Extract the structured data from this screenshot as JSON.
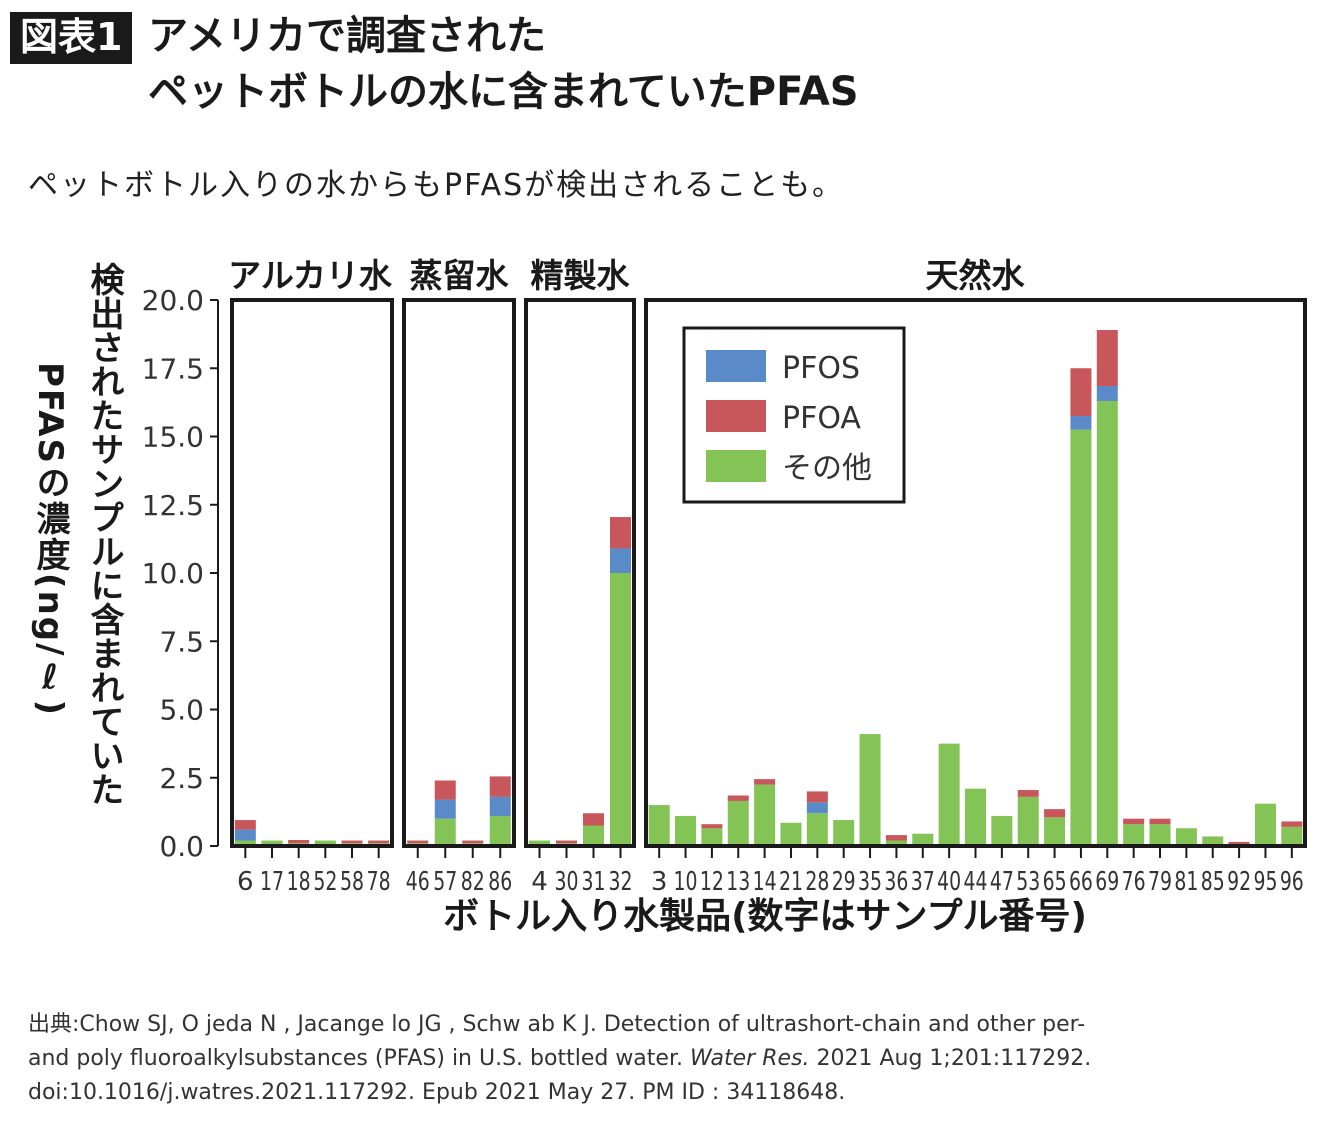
{
  "header": {
    "badge": "図表1",
    "title_line1": "アメリカで調査された",
    "title_line2": "ペットボトルの水に含まれていたPFAS",
    "subtitle": "ペットボトル入りの水からもPFASが検出されることも。"
  },
  "colors": {
    "PFOS": "#5b8ac8",
    "PFOA": "#c8575b",
    "other": "#84c457",
    "frame": "#1a1a1a"
  },
  "chart_data": {
    "type": "bar",
    "stacked": true,
    "ylabel_lines": [
      "検出されたサンプルに含まれていた",
      "PFASの濃度(ng/ℓ)"
    ],
    "xlabel": "ボトル入り水製品(数字はサンプル番号)",
    "ylim": [
      0,
      20
    ],
    "yticks": [
      "0.0",
      "2.5",
      "5.0",
      "7.5",
      "10.0",
      "12.5",
      "15.0",
      "17.5",
      "20.0"
    ],
    "legend": {
      "position": "upper-left of 天然水 panel",
      "entries": [
        "PFOS",
        "PFOA",
        "その他"
      ]
    },
    "panels": [
      {
        "name": "アルカリ水",
        "samples": [
          {
            "id": "6",
            "other": 0.2,
            "pfos": 0.4,
            "pfoa": 0.35
          },
          {
            "id": "17",
            "other": 0.2,
            "pfos": 0,
            "pfoa": 0
          },
          {
            "id": "18",
            "other": 0.1,
            "pfos": 0,
            "pfoa": 0.12
          },
          {
            "id": "52",
            "other": 0.2,
            "pfos": 0,
            "pfoa": 0
          },
          {
            "id": "58",
            "other": 0.1,
            "pfos": 0,
            "pfoa": 0.1
          },
          {
            "id": "78",
            "other": 0.1,
            "pfos": 0,
            "pfoa": 0.1
          }
        ]
      },
      {
        "name": "蒸留水",
        "samples": [
          {
            "id": "46",
            "other": 0.1,
            "pfos": 0,
            "pfoa": 0.1
          },
          {
            "id": "57",
            "other": 1.0,
            "pfos": 0.7,
            "pfoa": 0.7
          },
          {
            "id": "82",
            "other": 0.1,
            "pfos": 0,
            "pfoa": 0.1
          },
          {
            "id": "86",
            "other": 1.1,
            "pfos": 0.7,
            "pfoa": 0.75
          }
        ]
      },
      {
        "name": "精製水",
        "samples": [
          {
            "id": "4",
            "other": 0.2,
            "pfos": 0,
            "pfoa": 0
          },
          {
            "id": "30",
            "other": 0.1,
            "pfos": 0,
            "pfoa": 0.1
          },
          {
            "id": "31",
            "other": 0.75,
            "pfos": 0,
            "pfoa": 0.45
          },
          {
            "id": "32",
            "other": 10.0,
            "pfos": 0.9,
            "pfoa": 1.15
          }
        ]
      },
      {
        "name": "天然水",
        "samples": [
          {
            "id": "3",
            "other": 1.5,
            "pfos": 0,
            "pfoa": 0
          },
          {
            "id": "10",
            "other": 1.1,
            "pfos": 0,
            "pfoa": 0
          },
          {
            "id": "12",
            "other": 0.65,
            "pfos": 0,
            "pfoa": 0.15
          },
          {
            "id": "13",
            "other": 1.65,
            "pfos": 0,
            "pfoa": 0.2
          },
          {
            "id": "14",
            "other": 2.25,
            "pfos": 0,
            "pfoa": 0.2
          },
          {
            "id": "21",
            "other": 0.85,
            "pfos": 0,
            "pfoa": 0
          },
          {
            "id": "28",
            "other": 1.2,
            "pfos": 0.4,
            "pfoa": 0.4
          },
          {
            "id": "29",
            "other": 0.95,
            "pfos": 0,
            "pfoa": 0
          },
          {
            "id": "35",
            "other": 4.1,
            "pfos": 0,
            "pfoa": 0
          },
          {
            "id": "36",
            "other": 0.2,
            "pfos": 0,
            "pfoa": 0.2
          },
          {
            "id": "37",
            "other": 0.45,
            "pfos": 0,
            "pfoa": 0
          },
          {
            "id": "40",
            "other": 3.75,
            "pfos": 0,
            "pfoa": 0
          },
          {
            "id": "44",
            "other": 2.1,
            "pfos": 0,
            "pfoa": 0
          },
          {
            "id": "47",
            "other": 1.1,
            "pfos": 0,
            "pfoa": 0
          },
          {
            "id": "53",
            "other": 1.8,
            "pfos": 0,
            "pfoa": 0.25
          },
          {
            "id": "65",
            "other": 1.05,
            "pfos": 0,
            "pfoa": 0.3
          },
          {
            "id": "66",
            "other": 15.25,
            "pfos": 0.5,
            "pfoa": 1.75
          },
          {
            "id": "69",
            "other": 16.3,
            "pfos": 0.55,
            "pfoa": 2.05
          },
          {
            "id": "76",
            "other": 0.8,
            "pfos": 0,
            "pfoa": 0.2
          },
          {
            "id": "79",
            "other": 0.8,
            "pfos": 0,
            "pfoa": 0.2
          },
          {
            "id": "81",
            "other": 0.65,
            "pfos": 0,
            "pfoa": 0
          },
          {
            "id": "85",
            "other": 0.35,
            "pfos": 0,
            "pfoa": 0
          },
          {
            "id": "92",
            "other": 0.05,
            "pfos": 0,
            "pfoa": 0.1
          },
          {
            "id": "95",
            "other": 1.55,
            "pfos": 0,
            "pfoa": 0
          },
          {
            "id": "96",
            "other": 0.7,
            "pfos": 0,
            "pfoa": 0.2
          }
        ]
      }
    ]
  },
  "source": {
    "line1": "出典:Chow SJ, O jeda N , Jacange lo JG , Schw ab K J. Detection of ultrashort-chain and other per-",
    "line2_pre": "and poly fluoroalkylsubstances (PFAS) in U.S. bottled water. ",
    "line2_journal": "Water Res.",
    "line2_post": " 2021 Aug 1;201:117292.",
    "line3": "doi:10.1016/j.watres.2021.117292. Epub 2021 May 27. PM ID : 34118648."
  }
}
